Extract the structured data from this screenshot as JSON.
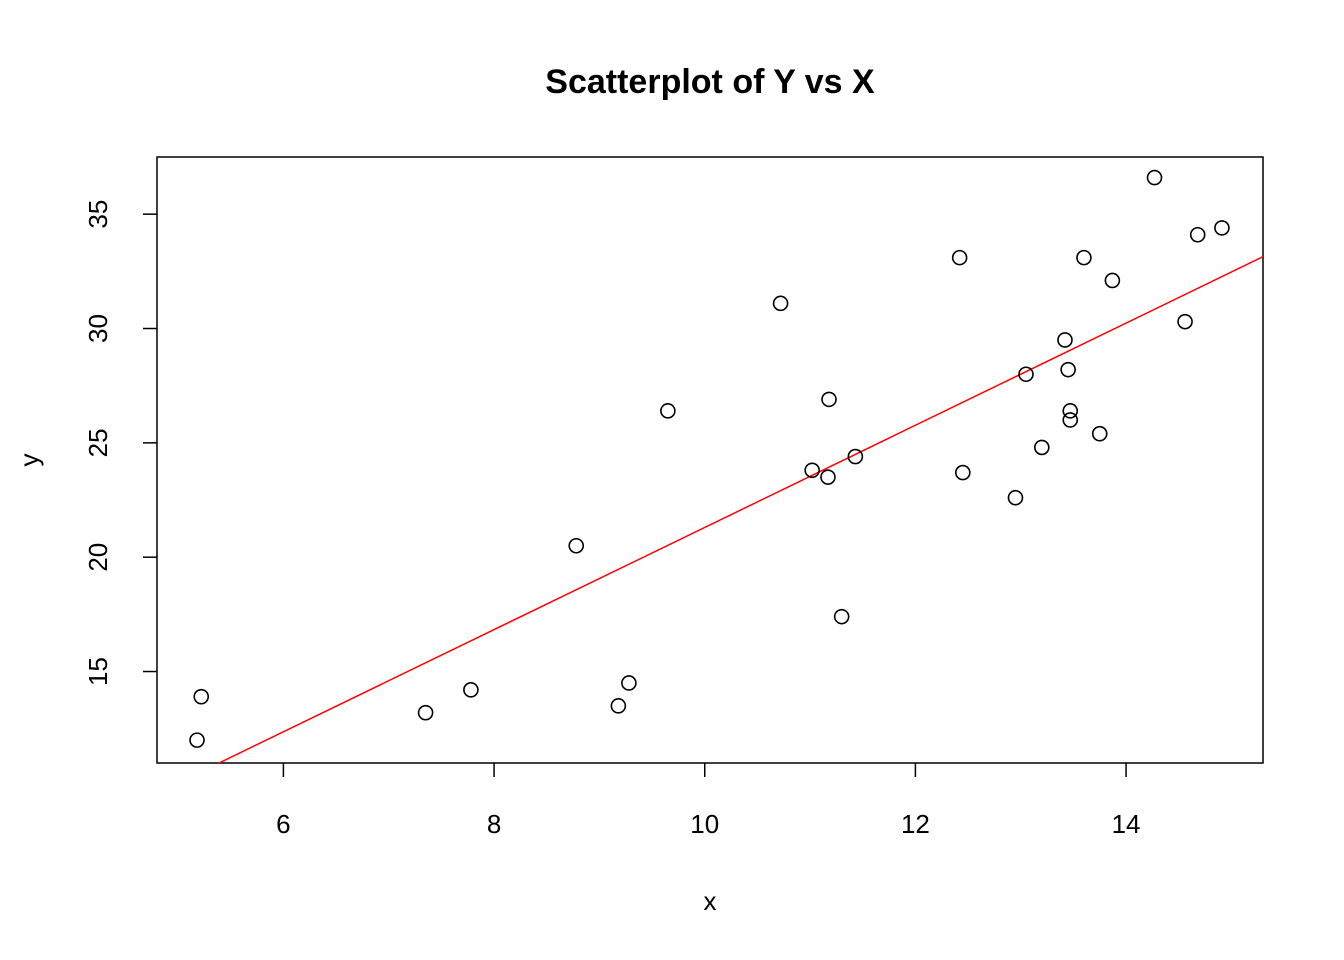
{
  "chart_data": {
    "type": "scatter",
    "title": "Scatterplot of Y vs X",
    "xlabel": "x",
    "ylabel": "y",
    "xlim": [
      4.8,
      15.3
    ],
    "ylim": [
      11.0,
      37.5
    ],
    "x_ticks": [
      6,
      8,
      10,
      12,
      14
    ],
    "y_ticks": [
      15,
      20,
      25,
      30,
      35
    ],
    "x_tick_labels": [
      "6",
      "8",
      "10",
      "12",
      "14"
    ],
    "y_tick_labels": [
      "15",
      "20",
      "25",
      "30",
      "35"
    ],
    "grid": false,
    "legend": false,
    "point_color": "#000000",
    "line_color": "#ff0000",
    "points": [
      {
        "x": 5.18,
        "y": 12.0
      },
      {
        "x": 5.22,
        "y": 13.9
      },
      {
        "x": 7.35,
        "y": 13.2
      },
      {
        "x": 7.78,
        "y": 14.2
      },
      {
        "x": 8.78,
        "y": 20.5
      },
      {
        "x": 9.18,
        "y": 13.5
      },
      {
        "x": 9.28,
        "y": 14.5
      },
      {
        "x": 9.65,
        "y": 26.4
      },
      {
        "x": 10.72,
        "y": 31.1
      },
      {
        "x": 11.02,
        "y": 23.8
      },
      {
        "x": 11.17,
        "y": 23.5
      },
      {
        "x": 11.18,
        "y": 26.9
      },
      {
        "x": 11.3,
        "y": 17.4
      },
      {
        "x": 11.43,
        "y": 24.4
      },
      {
        "x": 12.42,
        "y": 33.1
      },
      {
        "x": 12.45,
        "y": 23.7
      },
      {
        "x": 12.95,
        "y": 22.6
      },
      {
        "x": 13.05,
        "y": 28.0
      },
      {
        "x": 13.2,
        "y": 24.8
      },
      {
        "x": 13.42,
        "y": 29.5
      },
      {
        "x": 13.45,
        "y": 28.2
      },
      {
        "x": 13.47,
        "y": 26.4
      },
      {
        "x": 13.47,
        "y": 26.0
      },
      {
        "x": 13.6,
        "y": 33.1
      },
      {
        "x": 13.75,
        "y": 25.4
      },
      {
        "x": 13.87,
        "y": 32.1
      },
      {
        "x": 14.27,
        "y": 36.6
      },
      {
        "x": 14.56,
        "y": 30.3
      },
      {
        "x": 14.68,
        "y": 34.1
      },
      {
        "x": 14.91,
        "y": 34.4
      }
    ],
    "regression_line": {
      "intercept": -1.04,
      "slope": 2.234
    }
  }
}
